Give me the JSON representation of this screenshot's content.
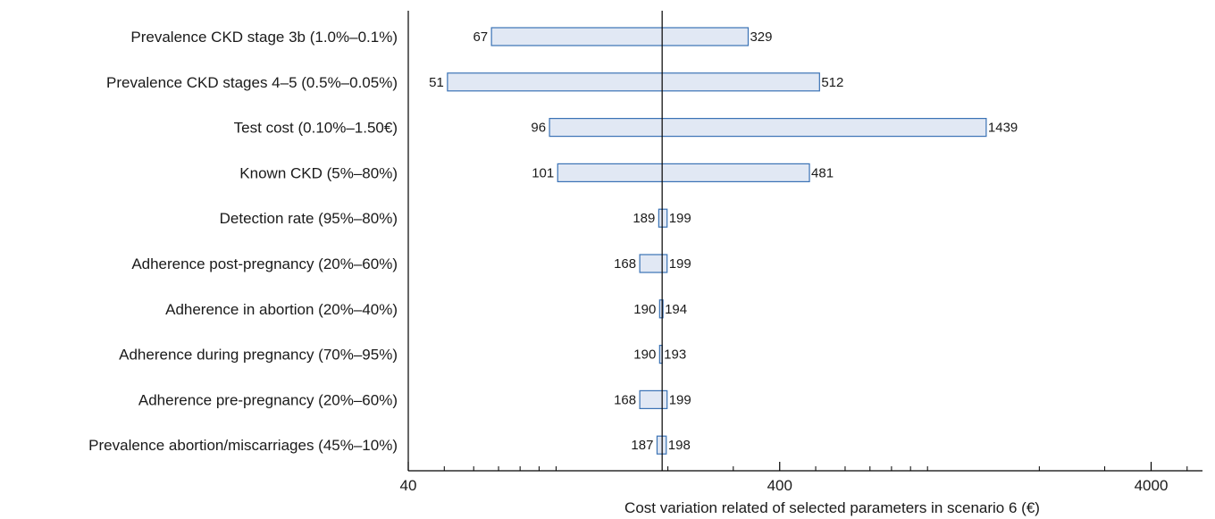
{
  "chart_data": {
    "type": "bar",
    "subtype": "tornado",
    "x_scale": "log",
    "xlim": [
      40,
      5500
    ],
    "base_value": 193,
    "xlabel": "Cost variation related of selected parameters in scenario 6 (€)",
    "x_ticks": [
      {
        "value": 40,
        "label": "40"
      },
      {
        "value": 400,
        "label": "400"
      },
      {
        "value": 4000,
        "label": "4000"
      }
    ],
    "minor_ticks": [
      50,
      60,
      70,
      80,
      90,
      100,
      200,
      300,
      500,
      600,
      700,
      800,
      900,
      1000,
      2000,
      3000,
      5000
    ],
    "bar_fill": "#e1e8f4",
    "bar_stroke": "#3a72b5",
    "parameters": [
      {
        "label": "Prevalence CKD stage 3b (1.0%–0.1%)",
        "low": 67,
        "high": 329,
        "low_label": "67",
        "high_label": "329"
      },
      {
        "label": "Prevalence CKD stages 4–5 (0.5%–0.05%)",
        "low": 51,
        "high": 512,
        "low_label": "51",
        "high_label": "512"
      },
      {
        "label": "Test cost (0.10%–1.50€)",
        "low": 96,
        "high": 1439,
        "low_label": "96",
        "high_label": "1439"
      },
      {
        "label": "Known CKD (5%–80%)",
        "low": 101,
        "high": 481,
        "low_label": "101",
        "high_label": "481"
      },
      {
        "label": "Detection rate (95%–80%)",
        "low": 189,
        "high": 199,
        "low_label": "189",
        "high_label": "199"
      },
      {
        "label": "Adherence post-pregnancy (20%–60%)",
        "low": 168,
        "high": 199,
        "low_label": "168",
        "high_label": "199"
      },
      {
        "label": "Adherence in abortion (20%–40%)",
        "low": 190,
        "high": 194,
        "low_label": "190",
        "high_label": "194"
      },
      {
        "label": "Adherence during pregnancy (70%–95%)",
        "low": 190,
        "high": 193,
        "low_label": "190",
        "high_label": "193"
      },
      {
        "label": "Adherence pre-pregnancy (20%–60%)",
        "low": 168,
        "high": 199,
        "low_label": "168",
        "high_label": "199"
      },
      {
        "label": "Prevalence abortion/miscarriages (45%–10%)",
        "low": 187,
        "high": 198,
        "low_label": "187",
        "high_label": "198"
      }
    ]
  }
}
